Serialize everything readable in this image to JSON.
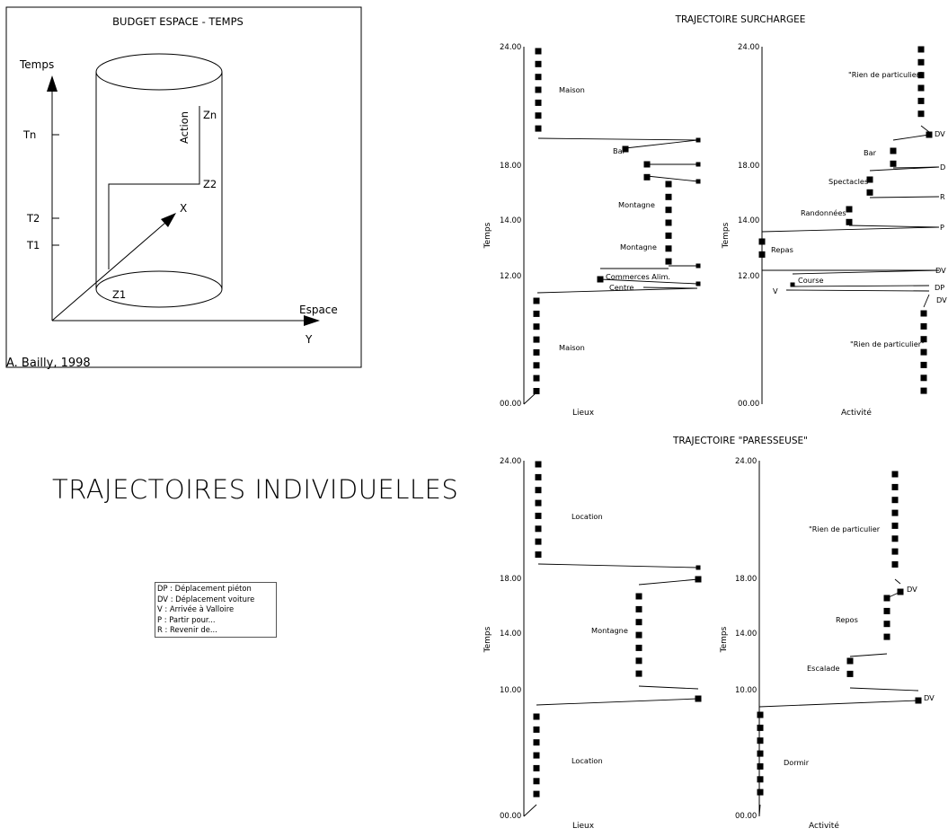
{
  "budget": {
    "title": "BUDGET ESPACE - TEMPS",
    "axis_time": "Temps",
    "axis_space": "Espace",
    "x_label": "X",
    "y_label": "Y",
    "action_label": "Action",
    "ticks": [
      "Tn",
      "T2",
      "T1"
    ],
    "points": [
      "Zn",
      "Z2",
      "Z1"
    ],
    "credit": "A. Bailly, 1998"
  },
  "main_title": "TRAJECTOIRES INDIVIDUELLES",
  "legend": {
    "items": [
      "DP : Déplacement piéton",
      "DV : Déplacement voiture",
      "V : Arrivée à Valloire",
      "P : Partir pour...",
      "R : Revenir de..."
    ]
  },
  "surchargee": {
    "title": "TRAJECTOIRE SURCHARGEE",
    "lieux": {
      "ylabel": "Temps",
      "xlabel": "Lieux",
      "ticks": [
        "24.00",
        "18.00",
        "14.00",
        "12.00",
        "00.00"
      ],
      "labels": [
        "Maison",
        "Bar",
        "Montagne",
        "Montagne",
        "Commerces Alim.",
        "Centre",
        "Maison"
      ]
    },
    "activite": {
      "ylabel": "Temps",
      "xlabel": "Activité",
      "ticks": [
        "24.00",
        "18.00",
        "14.00",
        "12.00",
        "00.00"
      ],
      "labels": [
        "\"Rien de particulier\"",
        "Bar",
        "Spectacles",
        "Randonnées",
        "Repas",
        "Course",
        "\"Rien de particulier\""
      ],
      "codes": [
        "DV",
        "D",
        "R",
        "P",
        "DV",
        "DP",
        "DV",
        "V"
      ]
    }
  },
  "paresseuse": {
    "title": "TRAJECTOIRE \"PARESSEUSE\"",
    "lieux": {
      "ylabel": "Temps",
      "xlabel": "Lieux",
      "ticks": [
        "24.00",
        "18.00",
        "14.00",
        "10.00",
        "00.00"
      ],
      "labels": [
        "Location",
        "Montagne",
        "Location"
      ]
    },
    "activite": {
      "ylabel": "Temps",
      "xlabel": "Activité",
      "ticks": [
        "24.00",
        "18.00",
        "14.00",
        "10.00",
        "00.00"
      ],
      "labels": [
        "\"Rien de particulier",
        "Repos",
        "Escalade",
        "Dormir"
      ],
      "codes": [
        "DV",
        "DV"
      ]
    }
  }
}
